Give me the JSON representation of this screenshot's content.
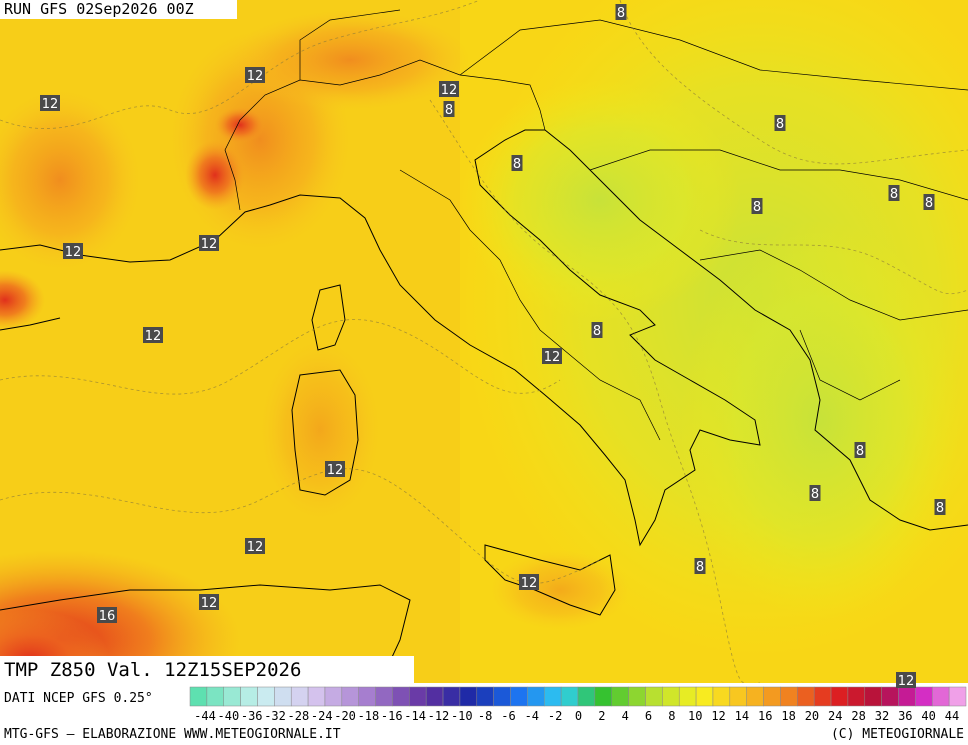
{
  "header": {
    "run": "RUN GFS 02Sep2026 00Z"
  },
  "contour_labels": [
    12,
    12,
    12,
    8,
    8,
    8,
    8,
    8,
    8,
    8,
    12,
    12,
    12,
    8,
    12,
    8,
    12,
    8,
    8,
    12,
    8,
    12,
    12,
    16,
    12
  ],
  "field_label": "TMP Z850 Val. 12Z15SEP2026",
  "source": "DATI NCEP GFS 0.25°",
  "scale_labels": [
    -44,
    -40,
    -36,
    -32,
    -28,
    -24,
    -20,
    -18,
    -16,
    -14,
    -12,
    -10,
    -8,
    -6,
    -4,
    -2,
    0,
    2,
    4,
    6,
    8,
    10,
    12,
    14,
    16,
    18,
    20,
    24,
    28,
    32,
    36,
    40,
    44
  ],
  "footer": {
    "left": "MTG-GFS — ELABORAZIONE WWW.METEOGIORNALE.IT",
    "right": "(C) METEOGIORNALE"
  }
}
